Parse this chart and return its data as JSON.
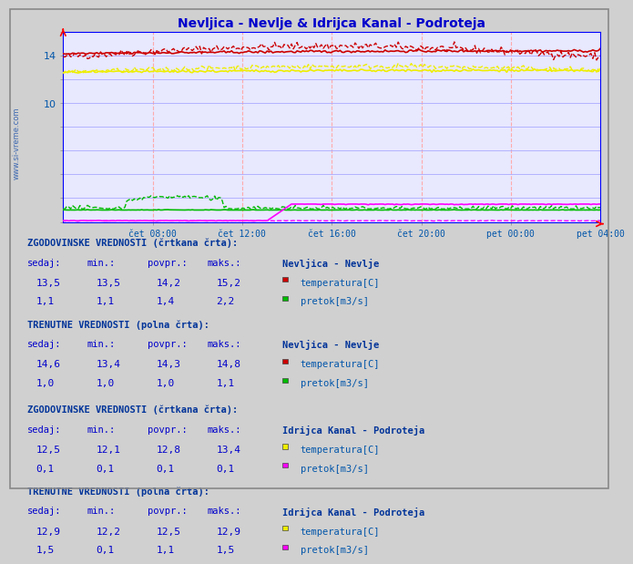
{
  "title": "Nevljica - Nevlje & Idrijca Kanal - Podroteja",
  "title_color": "#0000cc",
  "bg_color": "#d0d0d0",
  "plot_bg_color": "#e8e8ff",
  "watermark_side": "www.si-vreme.com",
  "xlabel_ticks": [
    "čet 08:00",
    "čet 12:00",
    "čet 16:00",
    "čet 20:00",
    "pet 00:00",
    "pet 04:00"
  ],
  "ylim": [
    0,
    16
  ],
  "yticks_labeled": [
    10,
    14
  ],
  "yticks_minor": [
    0,
    2,
    4,
    6,
    8,
    10,
    12,
    14,
    16
  ],
  "n_points": 288,
  "color_nevljica_temp": "#cc0000",
  "color_nevljica_flow": "#00bb00",
  "color_idrijca_temp": "#eeee00",
  "color_idrijca_flow": "#ff00ff",
  "grid_color_v": "#ffaaaa",
  "grid_color_h_major": "#aaaaff",
  "grid_color_h_minor": "#ccccff",
  "text_color": "#0055aa",
  "axis_color": "#0000ff",
  "table_header_color": "#003399",
  "table_val_color": "#0000cc",
  "table_label_color": "#0055aa",
  "legend_nevljica_temp": "#cc0000",
  "legend_nevljica_flow": "#00bb00",
  "legend_idrijca_temp": "#eeee00",
  "legend_idrijca_flow": "#ff00ff",
  "table_bg_color": "#e8e8ff"
}
